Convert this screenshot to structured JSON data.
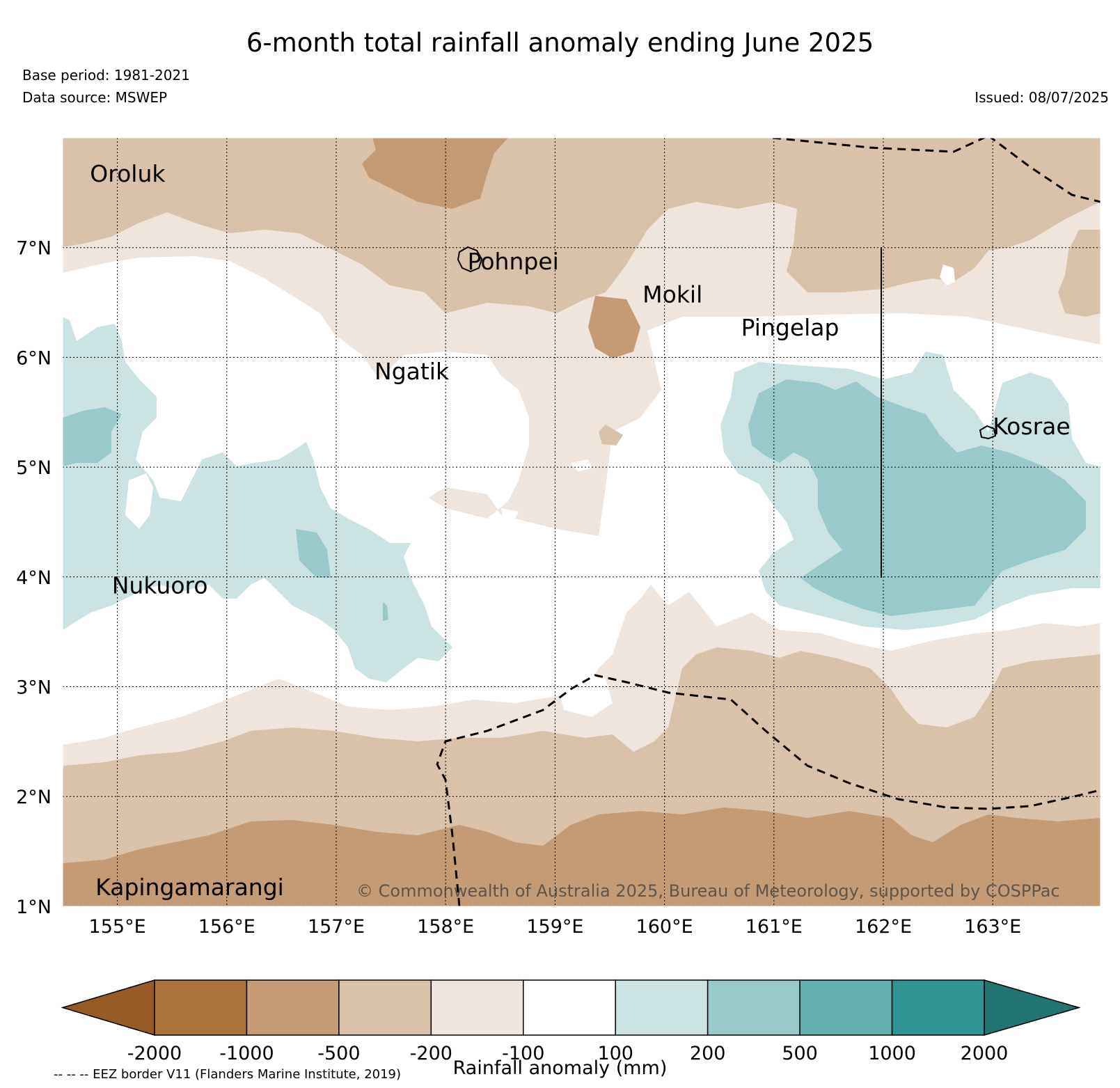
{
  "title": "6-month total rainfall anomaly ending June 2025",
  "base_period": "Base period: 1981-2021",
  "data_source": "Data source: MSWEP",
  "issued": "Issued: 08/07/2025",
  "copyright": "© Commonwealth of Australia 2025, Bureau of Meteorology, supported by COSPPac",
  "lon_ticks": [
    "155°E",
    "156°E",
    "157°E",
    "158°E",
    "159°E",
    "160°E",
    "161°E",
    "162°E",
    "163°E"
  ],
  "lat_ticks": [
    "7°N",
    "6°N",
    "5°N",
    "4°N",
    "3°N",
    "2°N",
    "1°N"
  ],
  "places": [
    {
      "name": "Oroluk",
      "lon": 154.75,
      "lat": 7.6
    },
    {
      "name": "Pohnpei",
      "lon": 158.2,
      "lat": 6.8
    },
    {
      "name": "Mokil",
      "lon": 159.8,
      "lat": 6.5
    },
    {
      "name": "Pingelap",
      "lon": 160.7,
      "lat": 6.2
    },
    {
      "name": "Ngatik",
      "lon": 157.35,
      "lat": 5.8
    },
    {
      "name": "Kosrae",
      "lon": 163.0,
      "lat": 5.3
    },
    {
      "name": "Nukuoro",
      "lon": 154.95,
      "lat": 3.85
    },
    {
      "name": "Kapingamarangi",
      "lon": 154.8,
      "lat": 1.1
    }
  ],
  "colorbar": {
    "title": "Rainfall anomaly (mm)",
    "ticks": [
      "-2000",
      "-1000",
      "-500",
      "-200",
      "-100",
      "100",
      "200",
      "500",
      "1000",
      "2000"
    ],
    "colors": [
      "#965a26",
      "#ac743d",
      "#c49b74",
      "#dac2aa",
      "#f0e5dc",
      "#ffffff",
      "#cbe3e3",
      "#99c9ca",
      "#64afb0",
      "#2f9493",
      "#227472"
    ]
  },
  "eez_note": "-- -- -- EEZ border V11 (Flanders Marine Institute, 2019)"
}
